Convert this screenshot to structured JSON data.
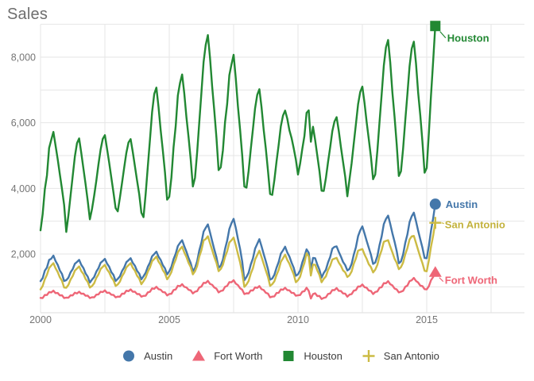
{
  "chart_data": {
    "type": "line",
    "title": "Sales",
    "x_unit": "monthly",
    "x_range": [
      "2000-01",
      "2015-05"
    ],
    "x_tick_years": [
      2000,
      2005,
      2010,
      2015
    ],
    "x_tick_labels": [
      "2000",
      "2005",
      "2010",
      "2015"
    ],
    "y_ticks": [
      2000,
      4000,
      6000,
      8000
    ],
    "y_tick_labels": [
      "2,000",
      "4,000",
      "6,000",
      "8,000"
    ],
    "y_grid_interval": 1000,
    "x_grid_interval_years": 2.5,
    "ylim": [
      200,
      9100
    ],
    "grid": true,
    "legend_position": "bottom",
    "colors": {
      "austin": "#4477AA",
      "fort_worth": "#EE6677",
      "houston": "#228833",
      "san_antonio": "#CCBB44",
      "grid": "#e6e6e6",
      "axis_text": "#757575",
      "title_text": "#6e6e6e"
    },
    "series": [
      {
        "name": "Austin",
        "color": "#4477AA",
        "marker": "circle",
        "last_value": 3520,
        "values": [
          1150,
          1290,
          1470,
          1610,
          1800,
          1880,
          1930,
          1810,
          1650,
          1520,
          1370,
          1200,
          1180,
          1300,
          1420,
          1560,
          1680,
          1780,
          1800,
          1690,
          1550,
          1430,
          1290,
          1150,
          1200,
          1320,
          1440,
          1590,
          1710,
          1810,
          1830,
          1730,
          1590,
          1470,
          1340,
          1200,
          1220,
          1340,
          1460,
          1610,
          1730,
          1830,
          1850,
          1750,
          1620,
          1510,
          1380,
          1250,
          1300,
          1450,
          1590,
          1760,
          1910,
          2020,
          2050,
          1940,
          1800,
          1680,
          1540,
          1400,
          1450,
          1630,
          1820,
          2030,
          2220,
          2360,
          2400,
          2260,
          2050,
          1900,
          1700,
          1500,
          1550,
          1800,
          2090,
          2370,
          2660,
          2820,
          2880,
          2680,
          2370,
          2160,
          1880,
          1600,
          1620,
          1850,
          2130,
          2430,
          2740,
          2960,
          3050,
          2820,
          2440,
          2180,
          1750,
          1220,
          1280,
          1450,
          1660,
          1890,
          2140,
          2330,
          2430,
          2260,
          1980,
          1800,
          1520,
          1240,
          1230,
          1390,
          1560,
          1780,
          1990,
          2130,
          2200,
          2070,
          1900,
          1760,
          1560,
          1360,
          1360,
          1520,
          1720,
          1950,
          2120,
          2060,
          1500,
          1900,
          1850,
          1700,
          1500,
          1300,
          1400,
          1540,
          1720,
          1930,
          2140,
          2240,
          2210,
          2090,
          1900,
          1780,
          1640,
          1520,
          1520,
          1720,
          1960,
          2230,
          2520,
          2740,
          2820,
          2650,
          2380,
          2210,
          1960,
          1720,
          1720,
          1960,
          2250,
          2560,
          2890,
          3090,
          3150,
          2940,
          2610,
          2400,
          2070,
          1740,
          1750,
          2010,
          2320,
          2620,
          2950,
          3170,
          3240,
          3020,
          2690,
          2470,
          2170,
          1900,
          1850,
          2270,
          2690,
          3110,
          3520
        ]
      },
      {
        "name": "Fort Worth",
        "color": "#EE6677",
        "marker": "triangle",
        "last_value": 1450,
        "values": [
          640,
          680,
          730,
          770,
          820,
          850,
          860,
          830,
          790,
          760,
          720,
          680,
          650,
          690,
          720,
          760,
          800,
          820,
          830,
          810,
          770,
          750,
          710,
          680,
          660,
          700,
          740,
          790,
          830,
          860,
          870,
          840,
          800,
          780,
          730,
          700,
          680,
          720,
          770,
          810,
          860,
          890,
          900,
          870,
          830,
          800,
          760,
          720,
          700,
          750,
          810,
          870,
          930,
          960,
          980,
          950,
          890,
          860,
          810,
          760,
          760,
          810,
          880,
          940,
          1010,
          1040,
          1060,
          1020,
          960,
          930,
          870,
          820,
          830,
          890,
          960,
          1030,
          1100,
          1140,
          1160,
          1110,
          1040,
          1000,
          920,
          850,
          850,
          910,
          980,
          1050,
          1120,
          1160,
          1180,
          1120,
          1030,
          980,
          890,
          800,
          780,
          820,
          870,
          910,
          960,
          990,
          1000,
          950,
          880,
          840,
          770,
          700,
          680,
          730,
          790,
          840,
          900,
          930,
          950,
          920,
          870,
          840,
          790,
          750,
          720,
          770,
          830,
          890,
          950,
          900,
          620,
          800,
          780,
          740,
          700,
          650,
          640,
          700,
          760,
          820,
          880,
          920,
          940,
          900,
          850,
          820,
          770,
          720,
          740,
          800,
          860,
          920,
          990,
          1030,
          1050,
          1010,
          950,
          910,
          850,
          800,
          820,
          880,
          950,
          1010,
          1090,
          1130,
          1150,
          1100,
          1020,
          970,
          900,
          850,
          830,
          900,
          980,
          1060,
          1150,
          1220,
          1250,
          1200,
          1110,
          1060,
          1000,
          950,
          900,
          1040,
          1180,
          1320,
          1450
        ]
      },
      {
        "name": "Houston",
        "color": "#228833",
        "marker": "square",
        "last_value": 8950,
        "values": [
          2700,
          3240,
          3950,
          4420,
          5210,
          5500,
          5700,
          5330,
          4870,
          4450,
          3960,
          3520,
          2650,
          3200,
          3760,
          4400,
          4950,
          5400,
          5500,
          5100,
          4580,
          4150,
          3600,
          3080,
          3350,
          3800,
          4210,
          4750,
          5160,
          5530,
          5600,
          5230,
          4760,
          4350,
          3850,
          3420,
          3280,
          3740,
          4150,
          4660,
          5060,
          5420,
          5480,
          5130,
          4650,
          4260,
          3800,
          3280,
          3100,
          3850,
          4640,
          5500,
          6300,
          6900,
          7050,
          6500,
          5750,
          5180,
          4470,
          3680,
          3720,
          4350,
          5230,
          5920,
          6810,
          7230,
          7450,
          6920,
          6150,
          5580,
          4860,
          4080,
          4300,
          5120,
          6000,
          6950,
          7830,
          8400,
          8650,
          8000,
          7080,
          6380,
          5520,
          4580,
          4620,
          5180,
          6000,
          6600,
          7430,
          7800,
          8050,
          7380,
          6480,
          5820,
          4990,
          4080,
          4000,
          4560,
          5180,
          5830,
          6420,
          6870,
          7000,
          6500,
          5770,
          5240,
          4520,
          3850,
          3780,
          4280,
          4800,
          5350,
          5870,
          6240,
          6350,
          6150,
          5750,
          5560,
          5200,
          4900,
          4400,
          4780,
          5180,
          5620,
          6280,
          6400,
          5400,
          5900,
          5450,
          5020,
          4510,
          3950,
          3900,
          4330,
          4780,
          5270,
          5720,
          6060,
          6150,
          5780,
          5240,
          4830,
          4340,
          3780,
          4250,
          4790,
          5350,
          5980,
          6540,
          6960,
          7080,
          6630,
          6000,
          5520,
          4940,
          4300,
          4400,
          5170,
          6000,
          6890,
          7720,
          8320,
          8500,
          7860,
          6900,
          6210,
          5330,
          4400,
          4500,
          5240,
          6050,
          6900,
          7700,
          8280,
          8450,
          7830,
          6900,
          6250,
          5400,
          4500,
          4600,
          5710,
          6820,
          7900,
          8950
        ]
      },
      {
        "name": "San Antonio",
        "color": "#CCBB44",
        "marker": "cross",
        "last_value": 2950,
        "values": [
          900,
          1050,
          1210,
          1390,
          1550,
          1670,
          1700,
          1590,
          1430,
          1310,
          1160,
          1000,
          950,
          1080,
          1200,
          1350,
          1470,
          1580,
          1600,
          1500,
          1370,
          1260,
          1130,
          1000,
          1000,
          1130,
          1250,
          1400,
          1520,
          1630,
          1650,
          1550,
          1420,
          1310,
          1180,
          1050,
          1050,
          1180,
          1300,
          1450,
          1570,
          1680,
          1700,
          1600,
          1470,
          1360,
          1230,
          1100,
          1150,
          1300,
          1440,
          1610,
          1760,
          1870,
          1900,
          1790,
          1650,
          1530,
          1390,
          1250,
          1300,
          1470,
          1650,
          1850,
          2030,
          2170,
          2200,
          2070,
          1890,
          1750,
          1580,
          1400,
          1450,
          1660,
          1900,
          2140,
          2390,
          2480,
          2520,
          2350,
          2100,
          1930,
          1710,
          1500,
          1520,
          1690,
          1890,
          2110,
          2330,
          2440,
          2480,
          2290,
          1980,
          1770,
          1400,
          1020,
          1050,
          1200,
          1380,
          1590,
          1810,
          1990,
          2080,
          1930,
          1680,
          1520,
          1280,
          1050,
          1060,
          1190,
          1340,
          1540,
          1740,
          1890,
          1960,
          1840,
          1680,
          1560,
          1360,
          1160,
          1180,
          1330,
          1520,
          1750,
          2000,
          1950,
          1320,
          1700,
          1650,
          1520,
          1340,
          1160,
          1220,
          1340,
          1490,
          1660,
          1810,
          1880,
          1860,
          1760,
          1620,
          1520,
          1420,
          1320,
          1330,
          1490,
          1680,
          1890,
          2080,
          2150,
          2130,
          2010,
          1830,
          1710,
          1580,
          1460,
          1500,
          1690,
          1910,
          2140,
          2350,
          2420,
          2400,
          2250,
          2030,
          1880,
          1710,
          1560,
          1580,
          1760,
          1970,
          2200,
          2420,
          2560,
          2530,
          2360,
          2100,
          1930,
          1700,
          1510,
          1450,
          1830,
          2200,
          2580,
          2950
        ]
      }
    ]
  }
}
